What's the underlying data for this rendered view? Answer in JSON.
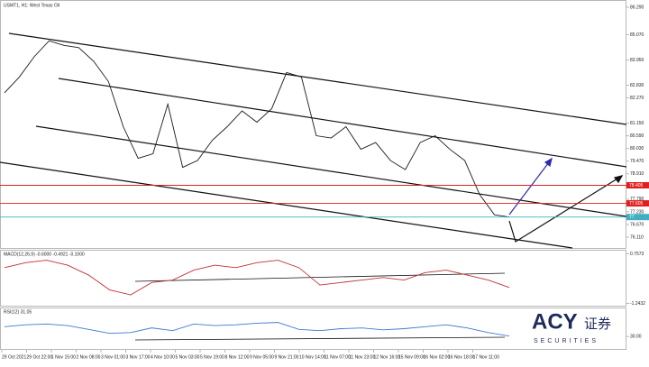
{
  "title": "USMT1, H1: West Texas Oil",
  "chart_data": {
    "type": "line",
    "color": "#1a1a1a",
    "values": [
      82.5,
      83.2,
      84.1,
      84.8,
      84.6,
      84.5,
      83.9,
      83.0,
      81.0,
      79.6,
      79.8,
      82.0,
      79.2,
      79.5,
      80.4,
      81.0,
      81.7,
      81.2,
      81.8,
      83.4,
      83.2,
      80.6,
      80.5,
      81.0,
      80.0,
      80.3,
      79.5,
      79.1,
      80.3,
      80.6,
      80.0,
      79.5,
      78.0,
      77.1,
      77.0
    ],
    "ylim": [
      75.63,
      86.61
    ],
    "yticks": [
      {
        "value": 86.29,
        "label": "86.290"
      },
      {
        "value": 85.07,
        "label": "85.070"
      },
      {
        "value": 83.95,
        "label": "83.950"
      },
      {
        "value": 82.83,
        "label": "82.830"
      },
      {
        "value": 82.27,
        "label": "82.270"
      },
      {
        "value": 81.15,
        "label": "81.150"
      },
      {
        "value": 80.59,
        "label": "80.590"
      },
      {
        "value": 80.03,
        "label": "80.030"
      },
      {
        "value": 79.47,
        "label": "79.470"
      },
      {
        "value": 78.91,
        "label": "78.910"
      },
      {
        "value": 77.79,
        "label": "77.790"
      },
      {
        "value": 77.23,
        "label": "77.230"
      },
      {
        "value": 76.67,
        "label": "76.670"
      },
      {
        "value": 76.11,
        "label": "76.110"
      }
    ],
    "levels": [
      {
        "value": 78.405,
        "color": "#e02020"
      },
      {
        "value": 77.605,
        "color": "#e02020"
      },
      {
        "value": 77,
        "color": "#40b0c0"
      }
    ],
    "time_labels": [
      "29 Oct 2021",
      "29 Oct 22:00",
      "1 Nov 15:00",
      "2 Nov 08:00",
      "3 Nov 01:00",
      "3 Nov 17:00",
      "4 Nov 10:00",
      "5 Nov 03:00",
      "5 Nov 19:00",
      "8 Nov 12:00",
      "9 Nov 05:00",
      "9 Nov 21:00",
      "10 Nov 14:00",
      "11 Nov 07:00",
      "11 Nov 23:00",
      "12 Nov 16:00",
      "15 Nov 09:00",
      "16 Nov 02:00",
      "16 Nov 18:00",
      "17 Nov 11:00"
    ]
  },
  "macd": {
    "label": "MACD(12,26,9) -0.6000 -0.4921 -0.1000",
    "ylim": [
      -1.3,
      0.85
    ],
    "yticks": [
      {
        "value": 0.7573,
        "label": "0.7573"
      },
      {
        "value": -1.2432,
        "label": "-1.2432"
      }
    ],
    "values": [
      0.2,
      0.4,
      0.5,
      0.3,
      -0.1,
      -0.7,
      -0.9,
      -0.4,
      -0.3,
      0.1,
      0.3,
      0.2,
      0.4,
      0.5,
      0.2,
      -0.5,
      -0.4,
      -0.3,
      -0.2,
      -0.3,
      0.0,
      0.1,
      -0.1,
      -0.3,
      -0.6
    ]
  },
  "rsi": {
    "label": "RSI(12) 31.05",
    "ylim": [
      0,
      100
    ],
    "yticks": [
      {
        "value": 30,
        "label": "30.00"
      }
    ],
    "values": [
      55,
      60,
      62,
      58,
      48,
      38,
      40,
      52,
      45,
      62,
      58,
      60,
      64,
      66,
      48,
      45,
      50,
      52,
      47,
      50,
      55,
      60,
      52,
      40,
      31.05
    ]
  },
  "logo": {
    "brand": "ACY",
    "cn": "证券",
    "sub": "SECURITIES"
  }
}
